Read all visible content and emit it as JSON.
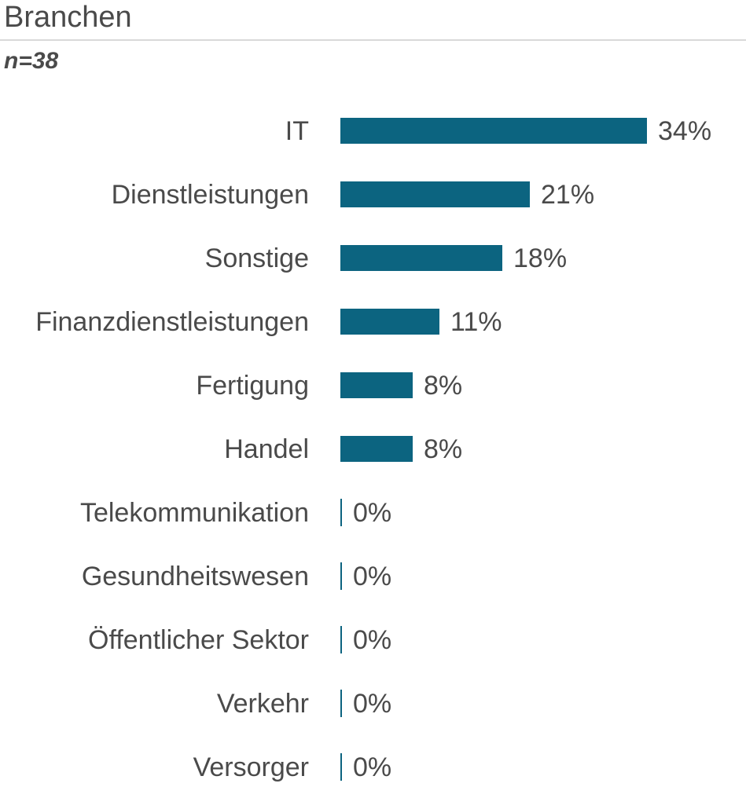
{
  "header": {
    "title": "Branchen",
    "sample_size": "n=38"
  },
  "chart_data": {
    "type": "bar",
    "orientation": "horizontal",
    "title": "Branchen",
    "subtitle": "n=38",
    "sample_size": 38,
    "unit": "%",
    "categories": [
      "IT",
      "Dienstleistungen",
      "Sonstige",
      "Finanzdienstleistungen",
      "Fertigung",
      "Handel",
      "Telekommunikation",
      "Gesundheitswesen",
      "Öffentlicher Sektor",
      "Verkehr",
      "Versorger"
    ],
    "values": [
      34,
      21,
      18,
      11,
      8,
      8,
      0,
      0,
      0,
      0,
      0
    ],
    "value_labels": [
      "34%",
      "21%",
      "18%",
      "11%",
      "8%",
      "8%",
      "0%",
      "0%",
      "0%",
      "0%",
      "0%"
    ],
    "xlim": [
      0,
      40
    ],
    "grid": false,
    "legend": false,
    "value_label_position": "end-of-bar"
  },
  "colors": {
    "bar": "#0C6480",
    "text": "#4A4A4A",
    "divider": "#D9D9D9",
    "background": "#FFFFFF"
  }
}
